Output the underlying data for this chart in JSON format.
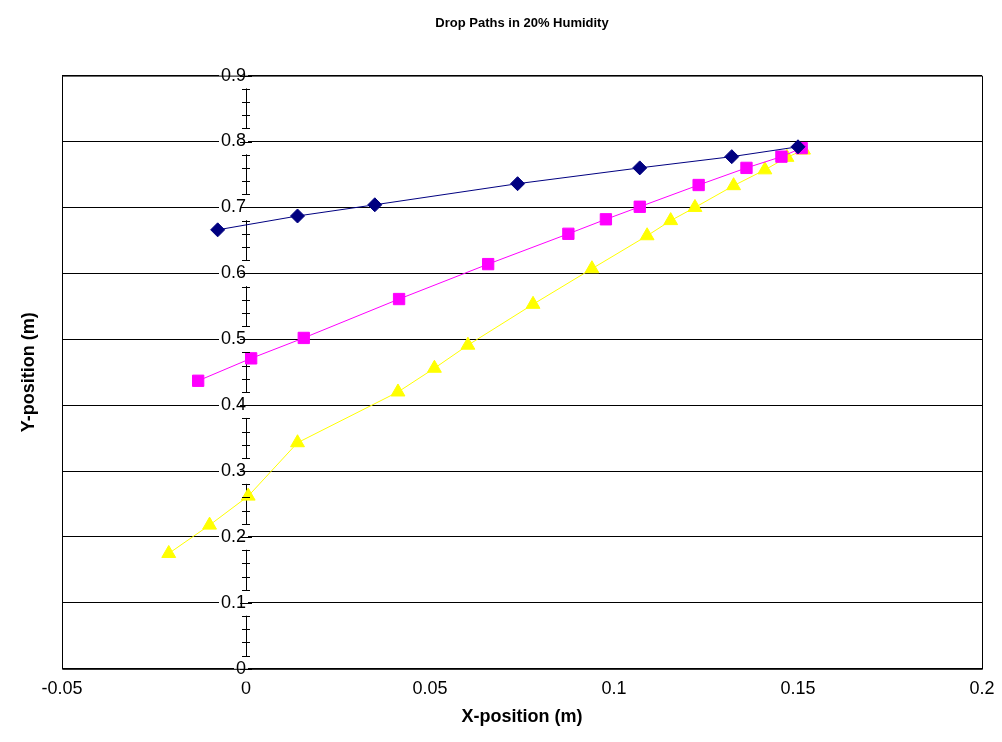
{
  "chart_data": {
    "type": "line",
    "title": "Drop Paths in 20% Humidity",
    "xlabel": "X-position (m)",
    "ylabel": "Y-position (m)",
    "xlim": [
      -0.05,
      0.2
    ],
    "xticks": [
      -0.05,
      0,
      0.05,
      0.1,
      0.15,
      0.2
    ],
    "ylim": [
      0,
      0.9
    ],
    "yticks": [
      0,
      0.1,
      0.2,
      0.3,
      0.4,
      0.5,
      0.6,
      0.7,
      0.8,
      0.9
    ],
    "grid": "y",
    "legend": false,
    "series": [
      {
        "color": "#000080",
        "marker": "diamond",
        "x": [
          -0.0077,
          0.014,
          0.035,
          0.0738,
          0.107,
          0.132,
          0.15
        ],
        "values": [
          0.666,
          0.687,
          0.704,
          0.736,
          0.76,
          0.777,
          0.792
        ]
      },
      {
        "color": "#ff00ff",
        "marker": "square",
        "x": [
          -0.013,
          0.0014,
          0.0157,
          0.0416,
          0.0658,
          0.0876,
          0.0978,
          0.107,
          0.123,
          0.136,
          0.1455,
          0.151
        ],
        "values": [
          0.437,
          0.471,
          0.502,
          0.561,
          0.614,
          0.66,
          0.682,
          0.701,
          0.734,
          0.76,
          0.777,
          0.79
        ]
      },
      {
        "color": "#ffff00",
        "marker": "triangle",
        "x": [
          -0.021,
          -0.0099,
          0.0006,
          0.014,
          0.0413,
          0.0512,
          0.0603,
          0.078,
          0.094,
          0.109,
          0.1154,
          0.122,
          0.1325,
          0.141,
          0.147,
          0.1515
        ],
        "values": [
          0.175,
          0.218,
          0.262,
          0.343,
          0.42,
          0.456,
          0.491,
          0.553,
          0.607,
          0.657,
          0.68,
          0.7,
          0.733,
          0.757,
          0.776,
          0.787
        ]
      }
    ]
  }
}
